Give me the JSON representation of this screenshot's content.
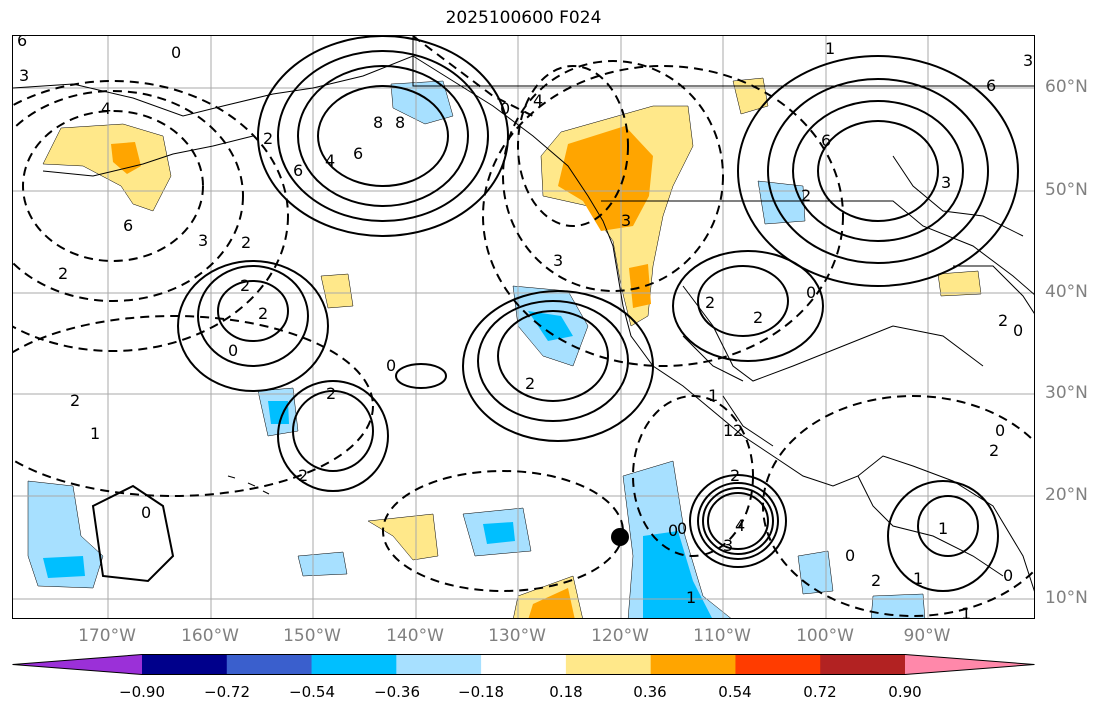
{
  "title": "2025100600 F024",
  "lon_ticks": [
    "170°W",
    "160°W",
    "150°W",
    "140°W",
    "130°W",
    "120°W",
    "110°W",
    "100°W",
    "90°W"
  ],
  "lat_ticks": [
    "60°N",
    "50°N",
    "40°N",
    "30°N",
    "20°N",
    "10°N"
  ],
  "colorbar": {
    "tick_labels": [
      "−0.90",
      "−0.72",
      "−0.54",
      "−0.36",
      "−0.18",
      "0.18",
      "0.36",
      "0.54",
      "0.72",
      "0.90"
    ],
    "colors": [
      "#9b30d8",
      "#00008b",
      "#3a5fcd",
      "#00bfff",
      "#a7e0ff",
      "#ffffff",
      "#ffe88a",
      "#ffa500",
      "#ff3c00",
      "#b22222",
      "#ff88aa"
    ]
  },
  "contour_labels": [
    "6",
    "3",
    "0",
    "2",
    "4",
    "6",
    "8",
    "6",
    "4",
    "6",
    "3",
    "2",
    "2",
    "2",
    "2",
    "0",
    "2",
    "0",
    "2",
    "1",
    "2",
    "2",
    "0",
    "3",
    "0",
    "2",
    "2",
    "3",
    "2",
    "4",
    "3",
    "0",
    "1",
    "1",
    "1",
    "2",
    "0",
    "1",
    "6",
    "6",
    "3",
    "0",
    "2",
    "0",
    "2",
    "1",
    "0",
    "1",
    "2",
    "3",
    "0",
    "4",
    "8",
    "0",
    "2",
    "1"
  ],
  "colors": {
    "positive_fill_light": "#ffe88a",
    "positive_fill_mid": "#ffa500",
    "negative_fill_light": "#a7e0ff",
    "negative_fill_mid": "#00bfff",
    "contour": "#000000",
    "gridline": "#aaaaaa",
    "tick_label": "#808080"
  }
}
